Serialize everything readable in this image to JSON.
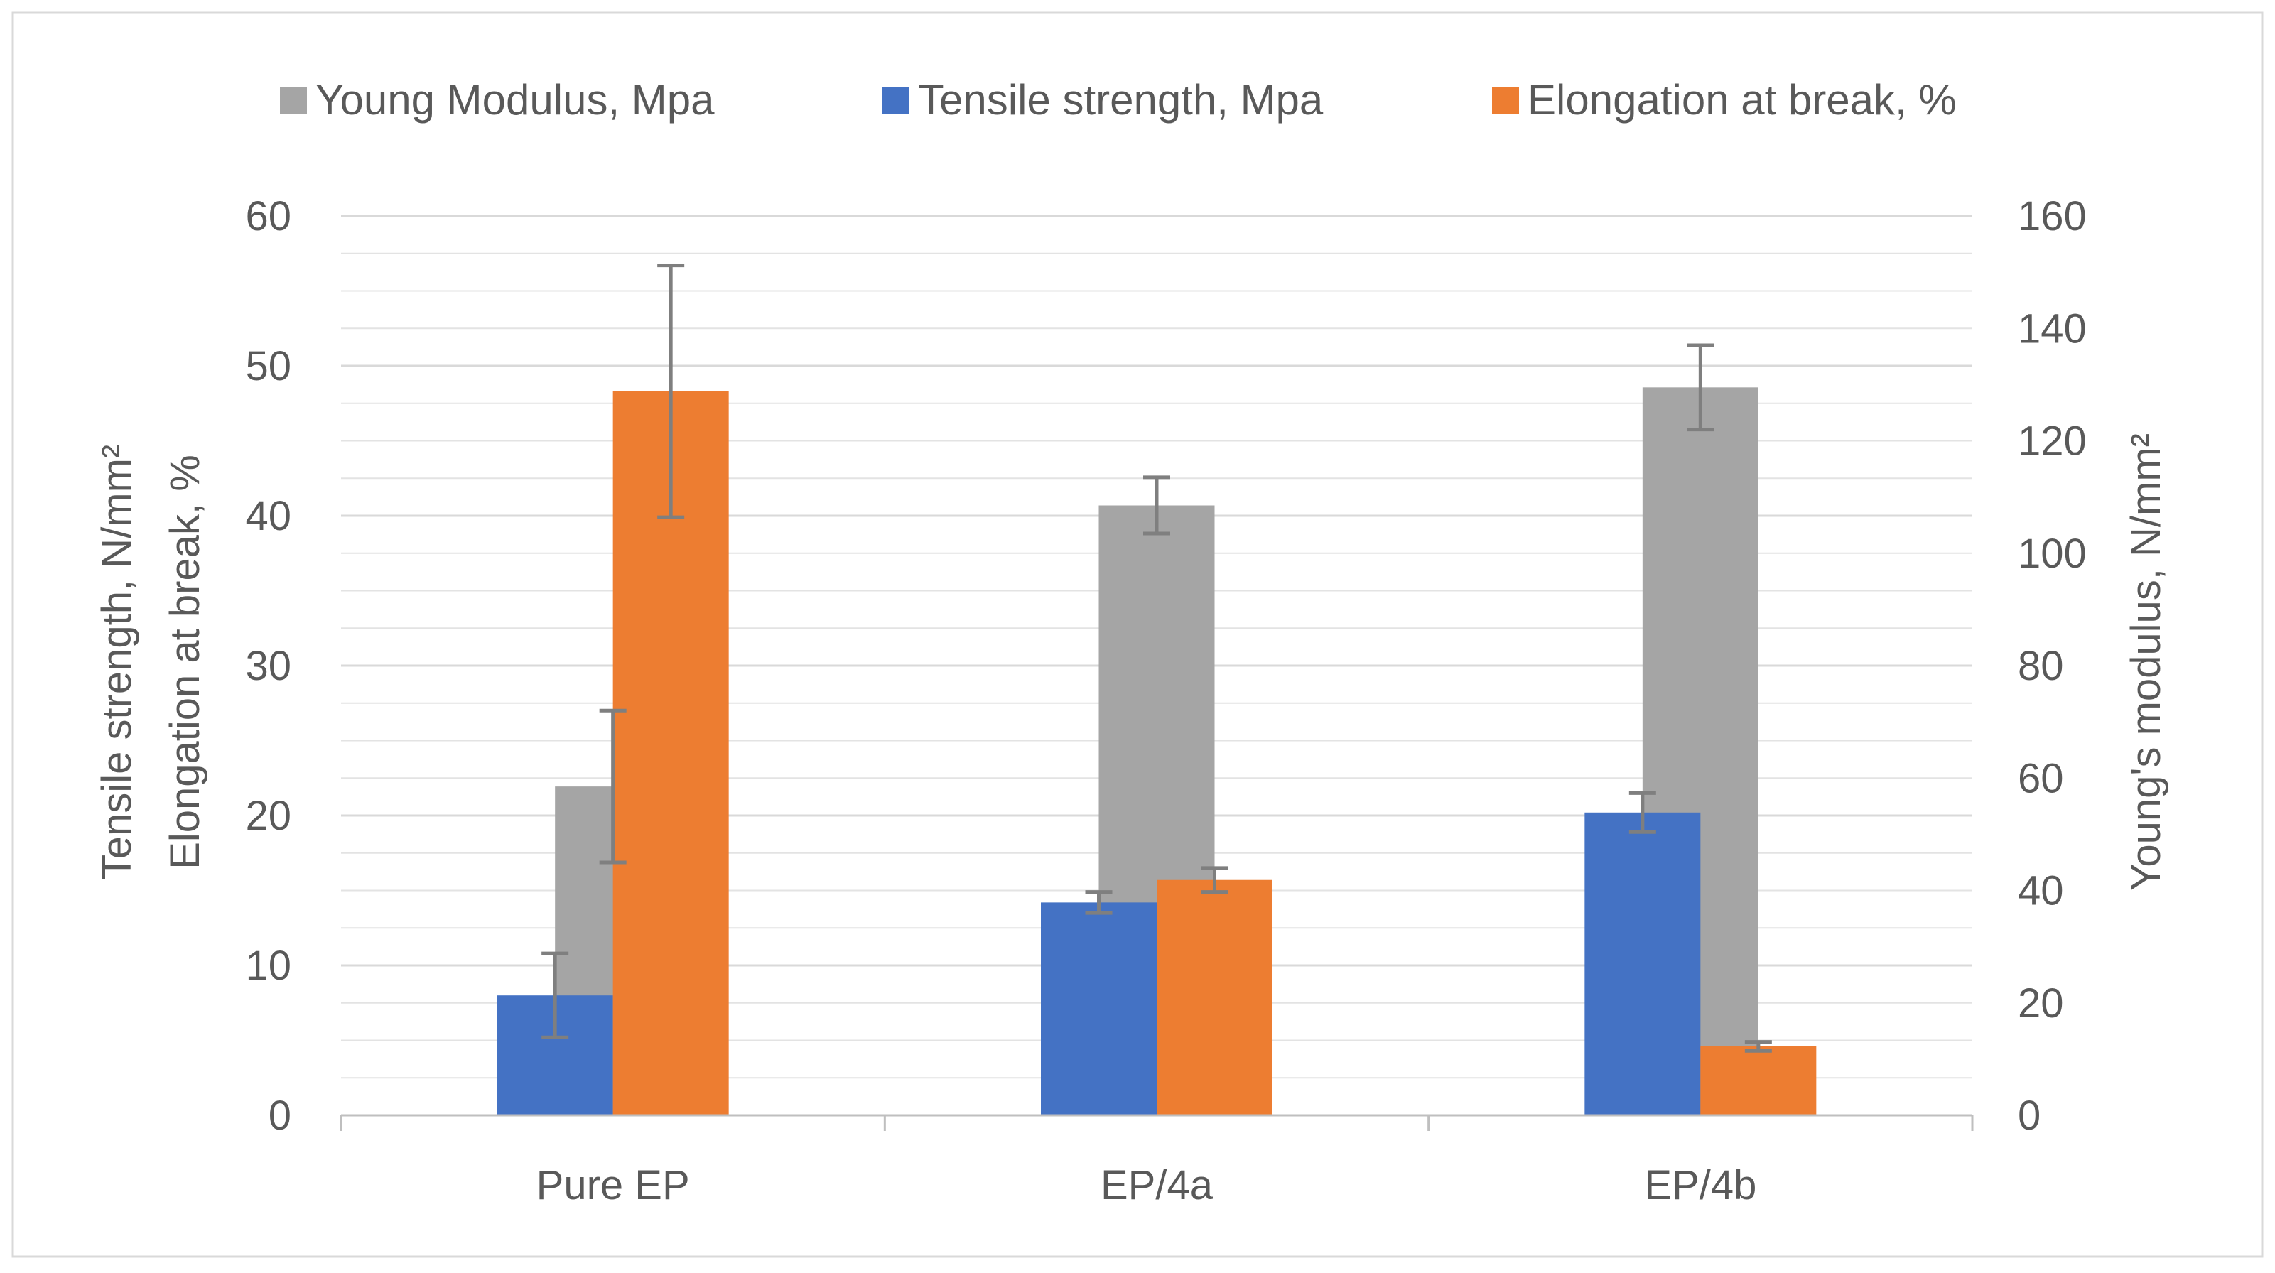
{
  "chart_data": {
    "type": "bar",
    "categories": [
      "Pure EP",
      "EP/4a",
      "EP/4b"
    ],
    "series": [
      {
        "name": "Young Modulus, Mpa",
        "axis": "right",
        "color": "#a5a5a5",
        "values": [
          58.5,
          108.5,
          129.5
        ],
        "errors": [
          13.5,
          5,
          7.5
        ]
      },
      {
        "name": "Tensile strength, Mpa",
        "axis": "left",
        "color": "#4472c4",
        "values": [
          8,
          14.2,
          20.2
        ],
        "errors": [
          2.8,
          0.7,
          1.3
        ]
      },
      {
        "name": "Elongation at break, %",
        "axis": "left",
        "color": "#ed7d31",
        "values": [
          48.3,
          15.7,
          4.6
        ],
        "errors": [
          8.4,
          0.8,
          0.3
        ]
      }
    ],
    "left_axis": {
      "label_line1": "Tensile strength, N/mm²",
      "label_line2": "Elongation at break, %",
      "range": [
        0,
        60
      ],
      "ticks": [
        "0",
        "10",
        "20",
        "30",
        "40",
        "50",
        "60"
      ],
      "tick_values": [
        0,
        10,
        20,
        30,
        40,
        50,
        60
      ]
    },
    "right_axis": {
      "label": "Young's modulus, N/mm²",
      "range": [
        0,
        160
      ],
      "ticks": [
        "0",
        "20",
        "40",
        "60",
        "80",
        "100",
        "120",
        "140",
        "160"
      ],
      "tick_values": [
        0,
        20,
        40,
        60,
        80,
        100,
        120,
        140,
        160
      ]
    },
    "legend_position": "top",
    "grid": true,
    "error_bar_color": "#7f7f7f",
    "axis_line_color": "#bfbfbf",
    "grid_color": "#e3e3e3",
    "border_color": "#d9d9d9"
  }
}
